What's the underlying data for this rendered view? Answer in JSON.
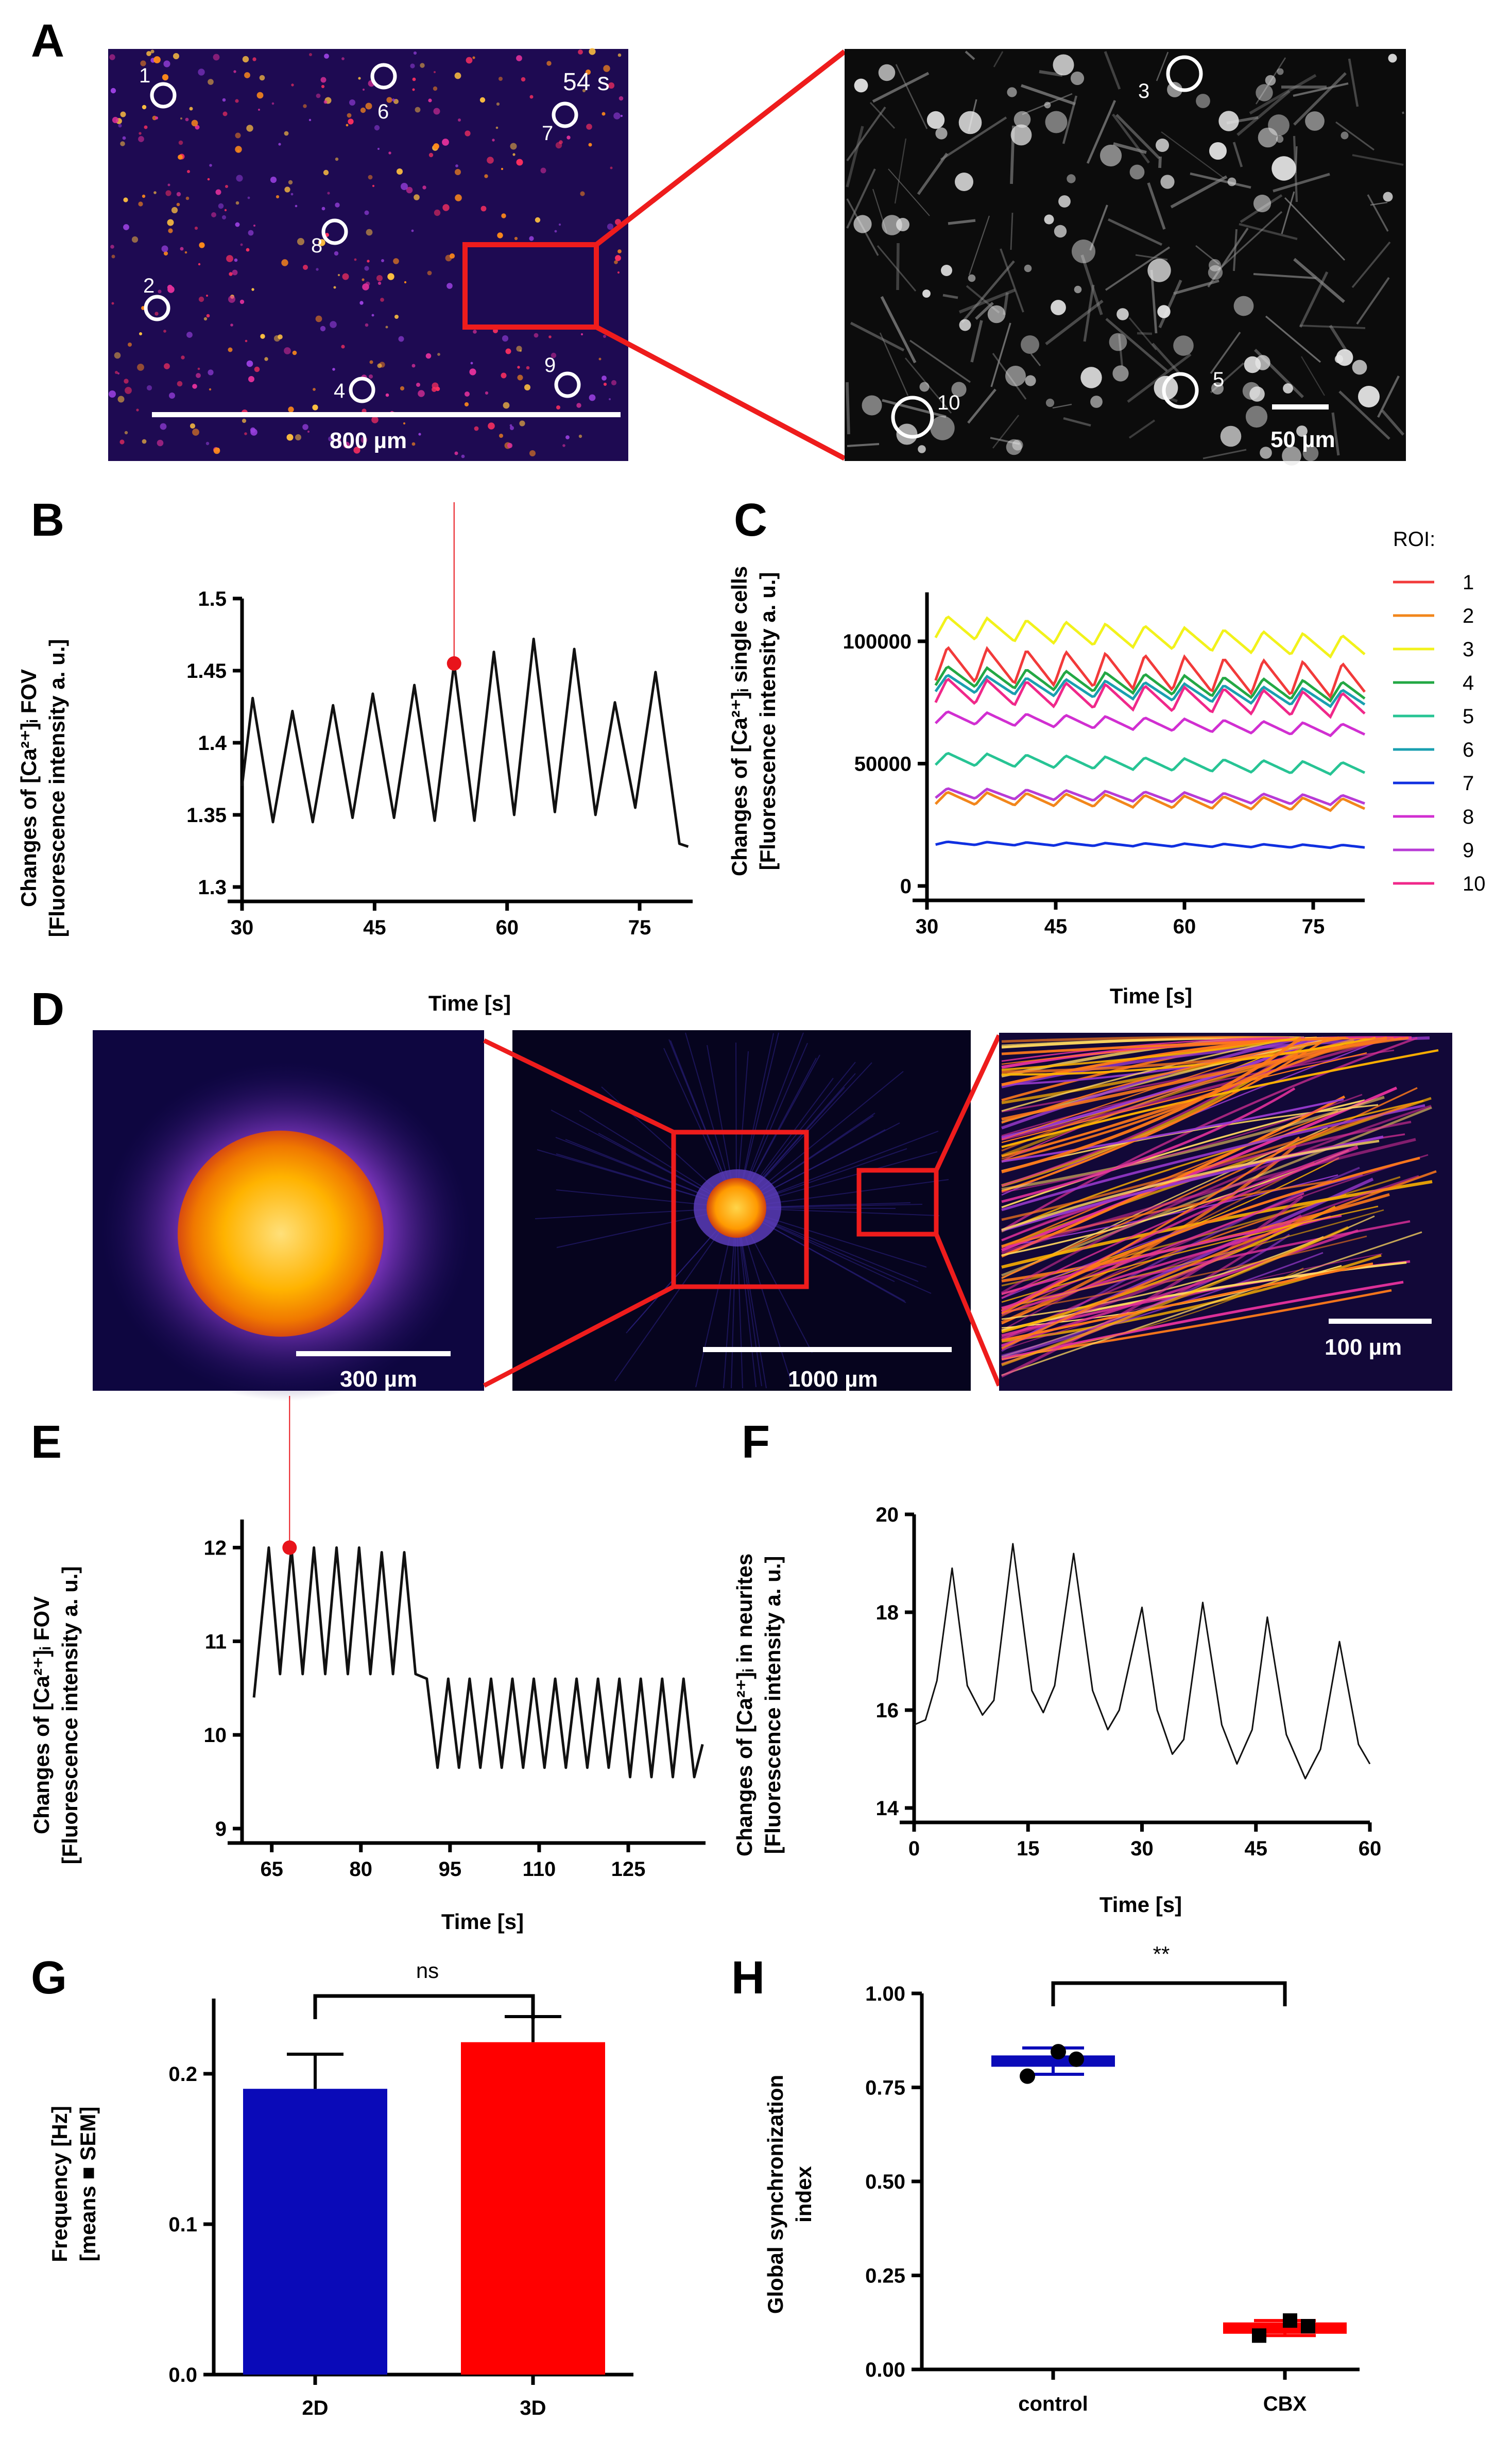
{
  "panels": {
    "A": {
      "label": "A",
      "time_label": "54 s",
      "scale_left": "800 µm",
      "scale_right": "50 µm",
      "rois_left": [
        "1",
        "2",
        "4",
        "6",
        "7",
        "8",
        "9"
      ],
      "rois_right": [
        "3",
        "5",
        "10"
      ]
    },
    "B": {
      "label": "B",
      "ylabel_line1": "Changes of [Ca²⁺]ᵢ FOV",
      "ylabel_line2": "[Fluorescence intensity a. u.]",
      "xlabel": "Time [s]"
    },
    "C": {
      "label": "C",
      "ylabel_line1": "Changes of [Ca²⁺]ᵢ single cells",
      "ylabel_line2": "[Fluorescence intensity a. u.]",
      "xlabel": "Time [s]",
      "legend_title": "ROI:"
    },
    "D": {
      "label": "D",
      "scale_1": "300 µm",
      "scale_2": "1000 µm",
      "scale_3": "100 µm"
    },
    "E": {
      "label": "E",
      "ylabel_line1": "Changes of [Ca²⁺]ᵢ FOV",
      "ylabel_line2": "[Fluorescence intensity a. u.]",
      "xlabel": "Time [s]"
    },
    "F": {
      "label": "F",
      "ylabel_line1": "Changes of [Ca²⁺]ᵢ in neurites",
      "ylabel_line2": "[Fluorescence intensity a. u.]",
      "xlabel": "Time [s]"
    },
    "G": {
      "label": "G",
      "ylabel_line1": "Frequency [Hz]",
      "ylabel_line2": "[means ■ SEM]",
      "sig": "ns"
    },
    "H": {
      "label": "H",
      "ylabel_line1": "Global synchronization",
      "ylabel_line2": "index",
      "sig": "**"
    }
  },
  "colors": {
    "black_trace": "#111111",
    "marker": "#e8141b",
    "bar_2d": "#0a0ab8",
    "bar_3d": "#ff0000",
    "frame_red": "#ee1c1c"
  },
  "chart_data": [
    {
      "id": "B",
      "type": "line",
      "xlim": [
        30,
        81
      ],
      "ylim": [
        1.3,
        1.5
      ],
      "xticks": [
        "30",
        "45",
        "60",
        "75"
      ],
      "yticks": [
        "1.3",
        "1.35",
        "1.4",
        "1.45",
        "1.5"
      ],
      "xlabel": "Time [s]",
      "peaks": [
        [
          31.2,
          1.431
        ],
        [
          35.7,
          1.422
        ],
        [
          40.3,
          1.426
        ],
        [
          44.8,
          1.434
        ],
        [
          49.5,
          1.44
        ],
        [
          54,
          1.455
        ],
        [
          58.5,
          1.463
        ],
        [
          63,
          1.472
        ],
        [
          67.6,
          1.465
        ],
        [
          72.2,
          1.428
        ],
        [
          76.8,
          1.449
        ]
      ],
      "troughs": [
        [
          30,
          1.37
        ],
        [
          33.5,
          1.345
        ],
        [
          38,
          1.345
        ],
        [
          42.5,
          1.348
        ],
        [
          47.2,
          1.348
        ],
        [
          51.8,
          1.346
        ],
        [
          56.3,
          1.346
        ],
        [
          60.8,
          1.35
        ],
        [
          65.4,
          1.352
        ],
        [
          70,
          1.35
        ],
        [
          74.5,
          1.355
        ],
        [
          79.5,
          1.33
        ],
        [
          80.5,
          1.328
        ]
      ],
      "marker": [
        54,
        1.455
      ]
    },
    {
      "id": "C",
      "type": "line",
      "xlim": [
        30,
        81
      ],
      "ylim": [
        0,
        120000
      ],
      "xticks": [
        "30",
        "45",
        "60",
        "75"
      ],
      "yticks": [
        "0",
        "50000",
        "100000"
      ],
      "xlabel": "Time [s]",
      "series": [
        {
          "name": "1",
          "color": "#f23a3a",
          "base": 91000,
          "amp": 14000
        },
        {
          "name": "2",
          "color": "#f2861b",
          "base": 36000,
          "amp": 5000
        },
        {
          "name": "3",
          "color": "#f2f21b",
          "base": 106000,
          "amp": 9000
        },
        {
          "name": "4",
          "color": "#23a844",
          "base": 86000,
          "amp": 8000
        },
        {
          "name": "5",
          "color": "#27c494",
          "base": 52000,
          "amp": 5000
        },
        {
          "name": "6",
          "color": "#1a9fb0",
          "base": 83000,
          "amp": 7000
        },
        {
          "name": "7",
          "color": "#1030e0",
          "base": 17500,
          "amp": 1200
        },
        {
          "name": "8",
          "color": "#d12fd1",
          "base": 69000,
          "amp": 5000
        },
        {
          "name": "9",
          "color": "#b83bd6",
          "base": 38000,
          "amp": 4000
        },
        {
          "name": "10",
          "color": "#f0288a",
          "base": 80000,
          "amp": 10000
        }
      ]
    },
    {
      "id": "E",
      "type": "line",
      "xlim": [
        60,
        138
      ],
      "ylim": [
        9,
        12.3
      ],
      "xticks": [
        "65",
        "80",
        "95",
        "110",
        "125"
      ],
      "yticks": [
        "9",
        "10",
        "11",
        "12"
      ],
      "xlabel": "Time [s]",
      "marker": [
        68,
        12.0
      ],
      "start": [
        62,
        10.4
      ],
      "phase1": {
        "period": 3.8,
        "peak": 12.0,
        "trough": 10.65,
        "until": 88
      },
      "phase2": {
        "period": 3.6,
        "peak": 10.6,
        "trough": 9.65,
        "until": 137
      }
    },
    {
      "id": "F",
      "type": "line",
      "xlim": [
        0,
        60
      ],
      "ylim": [
        14,
        20
      ],
      "xticks": [
        "0",
        "15",
        "30",
        "45",
        "60"
      ],
      "yticks": [
        "14",
        "16",
        "18",
        "20"
      ],
      "xlabel": "Time [s]",
      "points": [
        [
          0,
          15.7
        ],
        [
          1.5,
          15.8
        ],
        [
          3,
          16.6
        ],
        [
          5,
          18.9
        ],
        [
          7,
          16.5
        ],
        [
          9,
          15.9
        ],
        [
          10.5,
          16.2
        ],
        [
          13,
          19.4
        ],
        [
          15.5,
          16.4
        ],
        [
          17,
          15.95
        ],
        [
          18.5,
          16.5
        ],
        [
          21,
          19.2
        ],
        [
          23.5,
          16.4
        ],
        [
          25.5,
          15.6
        ],
        [
          27,
          16.0
        ],
        [
          30,
          18.1
        ],
        [
          32,
          16.0
        ],
        [
          34,
          15.1
        ],
        [
          35.5,
          15.4
        ],
        [
          38,
          18.2
        ],
        [
          40.5,
          15.7
        ],
        [
          42.5,
          14.9
        ],
        [
          44.5,
          15.6
        ],
        [
          46.5,
          17.9
        ],
        [
          49,
          15.5
        ],
        [
          51.5,
          14.6
        ],
        [
          53.5,
          15.2
        ],
        [
          56,
          17.4
        ],
        [
          58.5,
          15.3
        ],
        [
          60,
          14.9
        ]
      ]
    },
    {
      "id": "G",
      "type": "bar",
      "categories": [
        "2D",
        "3D"
      ],
      "values": [
        0.19,
        0.221
      ],
      "sem": [
        0.023,
        0.017
      ],
      "ylim": [
        0,
        0.25
      ],
      "yticks": [
        "0.0",
        "0.1",
        "0.2"
      ]
    },
    {
      "id": "H",
      "type": "scatter",
      "categories": [
        "control",
        "CBX"
      ],
      "means": [
        0.82,
        0.11
      ],
      "errors": [
        0.035,
        0.02
      ],
      "points": [
        [
          0.78,
          0.845,
          0.825
        ],
        [
          0.09,
          0.13,
          0.115
        ]
      ],
      "ylim": [
        0,
        1.0
      ],
      "yticks": [
        "0.00",
        "0.25",
        "0.50",
        "0.75",
        "1.00"
      ]
    }
  ]
}
